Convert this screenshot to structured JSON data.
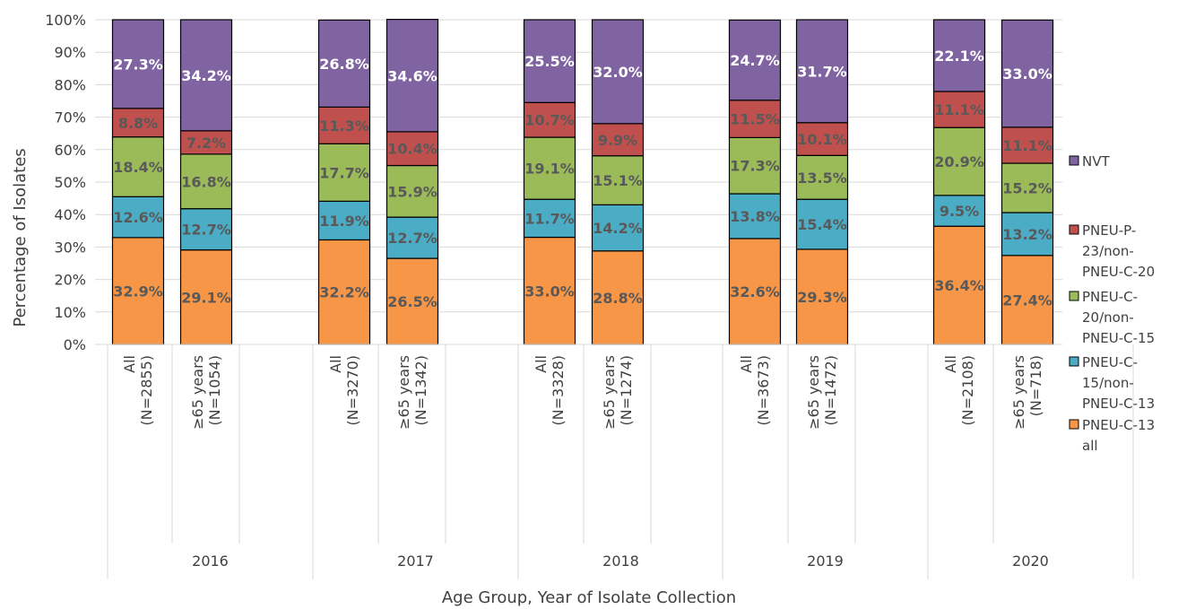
{
  "chart_data": {
    "type": "bar",
    "stacked": true,
    "ylabel": "Percentage of Isolates",
    "xlabel": "Age Group, Year of Isolate Collection",
    "ylim": [
      0,
      100
    ],
    "yticks": [
      "0%",
      "10%",
      "20%",
      "30%",
      "40%",
      "50%",
      "60%",
      "70%",
      "80%",
      "90%",
      "100%"
    ],
    "years": [
      "2016",
      "2017",
      "2018",
      "2019",
      "2020"
    ],
    "categories": [
      {
        "year": "2016",
        "label": [
          "All",
          "(N=2855)"
        ]
      },
      {
        "year": "2016",
        "label": [
          "≥65 years",
          "(N=1054)"
        ]
      },
      {
        "year": "2017",
        "label": [
          "All",
          "(N=3270)"
        ]
      },
      {
        "year": "2017",
        "label": [
          "≥65 years",
          "(N=1342)"
        ]
      },
      {
        "year": "2018",
        "label": [
          "All",
          "(N=3328)"
        ]
      },
      {
        "year": "2018",
        "label": [
          "≥65 years",
          "(N=1274)"
        ]
      },
      {
        "year": "2019",
        "label": [
          "All",
          "(N=3673)"
        ]
      },
      {
        "year": "2019",
        "label": [
          "≥65 years",
          "(N=1472)"
        ]
      },
      {
        "year": "2020",
        "label": [
          "All",
          "(N=2108)"
        ]
      },
      {
        "year": "2020",
        "label": [
          "≥65 years",
          "(N=718)"
        ]
      }
    ],
    "series": [
      {
        "name": "PNEU-C-13 all",
        "legend_lines": [
          "PNEU-C-13",
          "all"
        ],
        "color": "#F79646",
        "label_color": "#595959",
        "values": [
          32.9,
          29.1,
          32.2,
          26.5,
          33.0,
          28.8,
          32.6,
          29.3,
          36.4,
          27.4
        ]
      },
      {
        "name": "PNEU-C-15/non-PNEU-C-13",
        "legend_lines": [
          "PNEU-C-",
          "15/non-",
          "PNEU-C-13"
        ],
        "color": "#4BACC6",
        "label_color": "#595959",
        "values": [
          12.6,
          12.7,
          11.9,
          12.7,
          11.7,
          14.2,
          13.8,
          15.4,
          9.5,
          13.2
        ]
      },
      {
        "name": "PNEU-C-20/non-PNEU-C-15",
        "legend_lines": [
          "PNEU-C-",
          "20/non-",
          "PNEU-C-15"
        ],
        "color": "#9BBB59",
        "label_color": "#595959",
        "values": [
          18.4,
          16.8,
          17.7,
          15.9,
          19.1,
          15.1,
          17.3,
          13.5,
          20.9,
          15.2
        ]
      },
      {
        "name": "PNEU-P-23/non-PNEU-C-20",
        "legend_lines": [
          "PNEU-P-",
          "23/non-",
          "PNEU-C-20"
        ],
        "color": "#C0504D",
        "label_color": "#595959",
        "values": [
          8.8,
          7.2,
          11.3,
          10.4,
          10.7,
          9.9,
          11.5,
          10.1,
          11.1,
          11.1
        ]
      },
      {
        "name": "NVT",
        "legend_lines": [
          "NVT"
        ],
        "color": "#8064A2",
        "label_color": "#FFFFFF",
        "values": [
          27.3,
          34.2,
          26.8,
          34.6,
          25.5,
          32.0,
          24.7,
          31.7,
          22.1,
          33.0
        ]
      }
    ],
    "legend_position": "right",
    "grid": true
  }
}
